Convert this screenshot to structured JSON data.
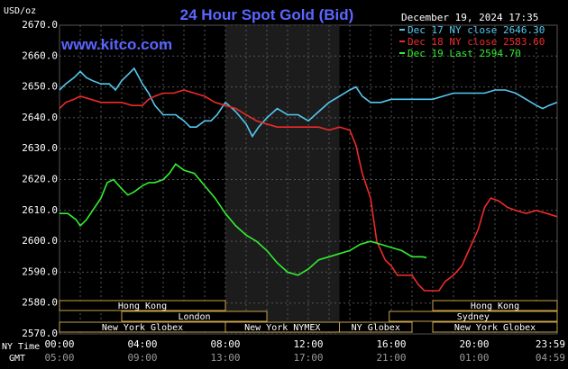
{
  "header": {
    "title": "24 Hour Spot Gold (Bid)",
    "units": "USD/oz",
    "website": "www.kitco.com",
    "timestamp": "December 19, 2024 17:35"
  },
  "legend": [
    {
      "label": "Dec 17 NY close 2646.30",
      "color": "#55c8f0"
    },
    {
      "label": "Dec 18 NY close 2583.60",
      "color": "#ee2a2a"
    },
    {
      "label": "Dec 19 Last 2594.70",
      "color": "#33ee33"
    }
  ],
  "sessions": {
    "row1": [
      {
        "label": "Hong Kong",
        "start": 0,
        "end": 8
      },
      {
        "label": "Hong Kong",
        "start": 18,
        "end": 24
      }
    ],
    "row2": [
      {
        "label": "London",
        "start": 3,
        "end": 10
      },
      {
        "label": "Sydney",
        "start": 15.9,
        "end": 24
      }
    ],
    "row3": [
      {
        "label": "New York Globex",
        "start": 0,
        "end": 8
      },
      {
        "label": "New York NYMEX",
        "start": 8,
        "end": 13.5
      },
      {
        "label": "NY Globex",
        "start": 13.5,
        "end": 17
      },
      {
        "label": "New York Globex",
        "start": 18,
        "end": 24
      }
    ]
  },
  "time_axis": {
    "ny_label": "NY Time",
    "gmt_label": "GMT",
    "ny_ticks": [
      "00:00",
      "04:00",
      "08:00",
      "12:00",
      "16:00",
      "20:00",
      "23:59"
    ],
    "gmt_ticks": [
      "05:00",
      "09:00",
      "13:00",
      "17:00",
      "21:00",
      "01:00",
      "04:59"
    ]
  },
  "chart_data": {
    "type": "line",
    "title": "24 Hour Spot Gold (Bid)",
    "ylabel": "USD/oz",
    "ylim": [
      2570,
      2670
    ],
    "y_ticks": [
      "2670.0",
      "2660.0",
      "2650.0",
      "2640.0",
      "2630.0",
      "2620.0",
      "2610.0",
      "2600.0",
      "2590.0",
      "2580.0",
      "2570.0"
    ],
    "x_unit": "hours (NY time)",
    "xlim": [
      0,
      24
    ],
    "shaded_region_hours": [
      8,
      13.5
    ],
    "grid": true,
    "series": [
      {
        "name": "Dec 17",
        "color": "#55c8f0",
        "points": [
          [
            0,
            2649
          ],
          [
            0.3,
            2651
          ],
          [
            0.7,
            2653
          ],
          [
            1.0,
            2655
          ],
          [
            1.3,
            2653
          ],
          [
            1.6,
            2652
          ],
          [
            2.0,
            2651
          ],
          [
            2.4,
            2651
          ],
          [
            2.7,
            2649
          ],
          [
            3.0,
            2652
          ],
          [
            3.3,
            2654
          ],
          [
            3.6,
            2656
          ],
          [
            4.0,
            2651
          ],
          [
            4.3,
            2648
          ],
          [
            4.6,
            2644
          ],
          [
            5.0,
            2641
          ],
          [
            5.3,
            2641
          ],
          [
            5.6,
            2641
          ],
          [
            6.0,
            2639
          ],
          [
            6.3,
            2637
          ],
          [
            6.6,
            2637
          ],
          [
            7.0,
            2639
          ],
          [
            7.3,
            2639
          ],
          [
            7.6,
            2641
          ],
          [
            8.0,
            2645
          ],
          [
            8.5,
            2642
          ],
          [
            9.0,
            2638
          ],
          [
            9.3,
            2634
          ],
          [
            9.6,
            2637
          ],
          [
            10.0,
            2640
          ],
          [
            10.5,
            2643
          ],
          [
            11.0,
            2641
          ],
          [
            11.5,
            2641
          ],
          [
            12.0,
            2639
          ],
          [
            12.5,
            2642
          ],
          [
            13.0,
            2645
          ],
          [
            13.5,
            2647
          ],
          [
            14.0,
            2649
          ],
          [
            14.3,
            2650
          ],
          [
            14.6,
            2647
          ],
          [
            15.0,
            2645
          ],
          [
            15.5,
            2645
          ],
          [
            16.0,
            2646
          ],
          [
            16.5,
            2646
          ],
          [
            17.0,
            2646
          ],
          [
            17.5,
            2646
          ],
          [
            18.0,
            2646
          ],
          [
            18.5,
            2647
          ],
          [
            19.0,
            2648
          ],
          [
            19.5,
            2648
          ],
          [
            20.0,
            2648
          ],
          [
            20.5,
            2648
          ],
          [
            21.0,
            2649
          ],
          [
            21.5,
            2649
          ],
          [
            22.0,
            2648
          ],
          [
            22.5,
            2646
          ],
          [
            23.0,
            2644
          ],
          [
            23.3,
            2643
          ],
          [
            23.6,
            2644
          ],
          [
            23.99,
            2645
          ]
        ]
      },
      {
        "name": "Dec 18",
        "color": "#ee2a2a",
        "points": [
          [
            0,
            2643
          ],
          [
            0.3,
            2645
          ],
          [
            0.7,
            2646
          ],
          [
            1.0,
            2647
          ],
          [
            1.5,
            2646
          ],
          [
            2.0,
            2645
          ],
          [
            2.5,
            2645
          ],
          [
            3.0,
            2645
          ],
          [
            3.5,
            2644
          ],
          [
            4.0,
            2644
          ],
          [
            4.3,
            2646
          ],
          [
            4.6,
            2647
          ],
          [
            5.0,
            2648
          ],
          [
            5.5,
            2648
          ],
          [
            6.0,
            2649
          ],
          [
            6.5,
            2648
          ],
          [
            7.0,
            2647
          ],
          [
            7.5,
            2645
          ],
          [
            8.0,
            2644
          ],
          [
            8.5,
            2643
          ],
          [
            9.0,
            2641
          ],
          [
            9.5,
            2639
          ],
          [
            10.0,
            2638
          ],
          [
            10.5,
            2637
          ],
          [
            11.0,
            2637
          ],
          [
            11.5,
            2637
          ],
          [
            12.0,
            2637
          ],
          [
            12.5,
            2637
          ],
          [
            13.0,
            2636
          ],
          [
            13.5,
            2637
          ],
          [
            14.0,
            2636
          ],
          [
            14.3,
            2631
          ],
          [
            14.6,
            2622
          ],
          [
            14.8,
            2618
          ],
          [
            15.0,
            2614
          ],
          [
            15.3,
            2600
          ],
          [
            15.7,
            2594
          ],
          [
            16.0,
            2592
          ],
          [
            16.3,
            2589
          ],
          [
            16.6,
            2589
          ],
          [
            17.0,
            2589
          ],
          [
            17.3,
            2586
          ],
          [
            17.6,
            2584
          ],
          [
            18.0,
            2584
          ],
          [
            18.3,
            2584
          ],
          [
            18.6,
            2587
          ],
          [
            19.0,
            2589
          ],
          [
            19.4,
            2592
          ],
          [
            19.8,
            2598
          ],
          [
            20.2,
            2604
          ],
          [
            20.5,
            2611
          ],
          [
            20.8,
            2614
          ],
          [
            21.2,
            2613
          ],
          [
            21.6,
            2611
          ],
          [
            22.0,
            2610
          ],
          [
            22.5,
            2609
          ],
          [
            23.0,
            2610
          ],
          [
            23.5,
            2609
          ],
          [
            23.99,
            2608
          ]
        ]
      },
      {
        "name": "Dec 19",
        "color": "#33ee33",
        "points": [
          [
            0,
            2609
          ],
          [
            0.4,
            2609
          ],
          [
            0.8,
            2607
          ],
          [
            1.0,
            2605
          ],
          [
            1.3,
            2607
          ],
          [
            1.6,
            2610
          ],
          [
            2.0,
            2614
          ],
          [
            2.3,
            2619
          ],
          [
            2.6,
            2620
          ],
          [
            3.0,
            2617
          ],
          [
            3.3,
            2615
          ],
          [
            3.6,
            2616
          ],
          [
            4.0,
            2618
          ],
          [
            4.3,
            2619
          ],
          [
            4.6,
            2619
          ],
          [
            5.0,
            2620
          ],
          [
            5.3,
            2622
          ],
          [
            5.6,
            2625
          ],
          [
            6.0,
            2623
          ],
          [
            6.5,
            2622
          ],
          [
            7.0,
            2618
          ],
          [
            7.5,
            2614
          ],
          [
            8.0,
            2609
          ],
          [
            8.5,
            2605
          ],
          [
            9.0,
            2602
          ],
          [
            9.5,
            2600
          ],
          [
            10.0,
            2597
          ],
          [
            10.5,
            2593
          ],
          [
            11.0,
            2590
          ],
          [
            11.5,
            2589
          ],
          [
            12.0,
            2591
          ],
          [
            12.5,
            2594
          ],
          [
            13.0,
            2595
          ],
          [
            13.5,
            2596
          ],
          [
            14.0,
            2597
          ],
          [
            14.5,
            2599
          ],
          [
            15.0,
            2600
          ],
          [
            15.5,
            2599
          ],
          [
            16.0,
            2598
          ],
          [
            16.5,
            2597
          ],
          [
            17.0,
            2595
          ],
          [
            17.5,
            2595
          ],
          [
            17.7,
            2594.7
          ]
        ]
      }
    ]
  }
}
